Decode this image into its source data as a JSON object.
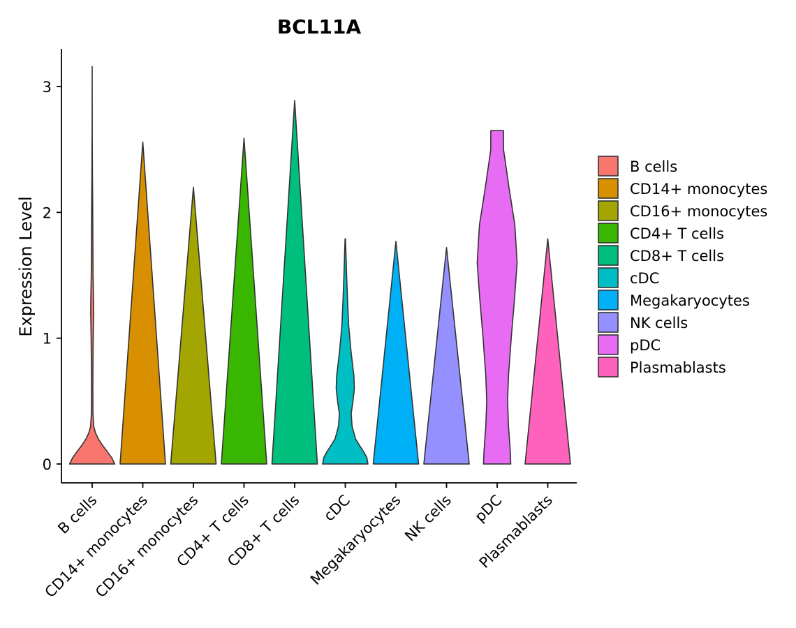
{
  "chart_data": {
    "type": "violin",
    "title": "BCL11A",
    "xlabel": "",
    "ylabel": "Expression Level",
    "ylim": [
      -0.15,
      3.3
    ],
    "yticks": [
      0,
      1,
      2,
      3
    ],
    "categories": [
      "B cells",
      "CD14+ monocytes",
      "CD16+ monocytes",
      "CD4+ T cells",
      "CD8+ T cells",
      "cDC",
      "Megakaryocytes",
      "NK cells",
      "pDC",
      "Plasmablasts"
    ],
    "colors": [
      "#F8766D",
      "#D89000",
      "#A3A500",
      "#39B600",
      "#00BF7D",
      "#00BFC4",
      "#00B0F6",
      "#9590FF",
      "#E76BF3",
      "#FF62BC"
    ],
    "max_values": [
      3.16,
      2.56,
      2.2,
      2.59,
      2.89,
      1.79,
      1.77,
      1.72,
      2.65,
      1.79
    ],
    "violins": [
      {
        "profile": [
          [
            0.0,
            1.0
          ],
          [
            0.05,
            0.86
          ],
          [
            0.1,
            0.66
          ],
          [
            0.15,
            0.45
          ],
          [
            0.2,
            0.27
          ],
          [
            0.25,
            0.14
          ],
          [
            0.3,
            0.07
          ],
          [
            0.4,
            0.035
          ],
          [
            0.6,
            0.03
          ],
          [
            0.8,
            0.035
          ],
          [
            1.0,
            0.045
          ],
          [
            1.2,
            0.065
          ],
          [
            1.3,
            0.06
          ],
          [
            1.5,
            0.04
          ],
          [
            1.8,
            0.03
          ],
          [
            2.0,
            0.025
          ],
          [
            2.3,
            0.012
          ],
          [
            2.6,
            0.004
          ],
          [
            3.16,
            0.0
          ]
        ]
      },
      {
        "profile": [
          [
            0.0,
            1.0
          ],
          [
            2.56,
            0.0
          ]
        ]
      },
      {
        "profile": [
          [
            0.0,
            1.0
          ],
          [
            2.2,
            0.0
          ]
        ]
      },
      {
        "profile": [
          [
            0.0,
            1.0
          ],
          [
            2.59,
            0.0
          ]
        ]
      },
      {
        "profile": [
          [
            0.0,
            1.0
          ],
          [
            2.89,
            0.0
          ]
        ]
      },
      {
        "profile": [
          [
            0.0,
            1.0
          ],
          [
            0.05,
            0.95
          ],
          [
            0.1,
            0.8
          ],
          [
            0.15,
            0.62
          ],
          [
            0.2,
            0.45
          ],
          [
            0.3,
            0.3
          ],
          [
            0.4,
            0.26
          ],
          [
            0.5,
            0.34
          ],
          [
            0.6,
            0.4
          ],
          [
            0.7,
            0.38
          ],
          [
            0.9,
            0.25
          ],
          [
            1.1,
            0.15
          ],
          [
            1.3,
            0.1
          ],
          [
            1.5,
            0.06
          ],
          [
            1.7,
            0.025
          ],
          [
            1.79,
            0.01
          ]
        ]
      },
      {
        "profile": [
          [
            0.0,
            1.0
          ],
          [
            1.77,
            0.0
          ]
        ]
      },
      {
        "profile": [
          [
            0.0,
            1.0
          ],
          [
            1.72,
            0.0
          ]
        ]
      },
      {
        "profile": [
          [
            0.0,
            0.6
          ],
          [
            0.1,
            0.58
          ],
          [
            0.3,
            0.5
          ],
          [
            0.5,
            0.46
          ],
          [
            0.7,
            0.5
          ],
          [
            1.0,
            0.62
          ],
          [
            1.3,
            0.76
          ],
          [
            1.6,
            0.88
          ],
          [
            1.9,
            0.78
          ],
          [
            2.2,
            0.52
          ],
          [
            2.5,
            0.28
          ],
          [
            2.65,
            0.28
          ]
        ]
      },
      {
        "profile": [
          [
            0.0,
            1.0
          ],
          [
            1.79,
            0.0
          ]
        ]
      }
    ]
  }
}
